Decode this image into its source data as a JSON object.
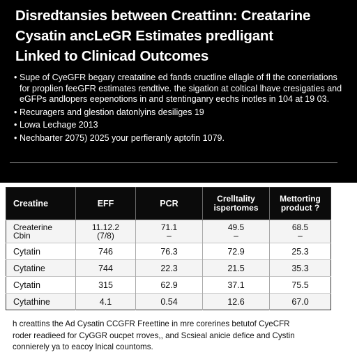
{
  "title_lines": [
    "Disredtansies between Creattinn: Creatarine",
    "Cysatin ancLeGR Estimates predligant",
    "Linked to Clinicad Outcomes"
  ],
  "bullets": [
    "Supe of CyeGFR begary creatatine ed fands cructline ellagle of fl the conerriations for proplien feeGFR estimates rendtive. the sigation at coltical lhave cresigaties and eGFPs andlopers eepenotions in and stentinganry eechs inotles in 104 at 19 03.",
    "Recuragers and glestion datonlyins desiliges 19",
    "Lowa Lechage 2013",
    "Nechbarter 2075) 2025 your perfieranly aptofin 1079."
  ],
  "table": {
    "headers": [
      {
        "line1": "Creatine",
        "line2": ""
      },
      {
        "line1": "EFF",
        "line2": ""
      },
      {
        "line1": "PCR",
        "line2": ""
      },
      {
        "line1": "Crelltality",
        "line2": "ispertomes"
      },
      {
        "line1": "Mettorting",
        "line2": "product ?"
      }
    ],
    "rows": [
      {
        "label": "Createrine",
        "label_sub": "Cbin",
        "cells": [
          {
            "main": "11.12.2",
            "sub": "(7/8)"
          },
          {
            "main": "71.1",
            "sub": "–"
          },
          {
            "main": "49.5",
            "sub": "–"
          },
          {
            "main": "68.5",
            "sub": "–"
          }
        ]
      },
      {
        "label": "Cytatin",
        "label_sub": "",
        "cells": [
          {
            "main": "746",
            "sub": ""
          },
          {
            "main": "76.3",
            "sub": ""
          },
          {
            "main": "72.9",
            "sub": ""
          },
          {
            "main": "25.3",
            "sub": ""
          }
        ]
      },
      {
        "label": "Cytatine",
        "label_sub": "",
        "cells": [
          {
            "main": "744",
            "sub": ""
          },
          {
            "main": "22.3",
            "sub": ""
          },
          {
            "main": "21.5",
            "sub": ""
          },
          {
            "main": "35.3",
            "sub": ""
          }
        ]
      },
      {
        "label": "Cytatin",
        "label_sub": "",
        "cells": [
          {
            "main": "315",
            "sub": ""
          },
          {
            "main": "62.9",
            "sub": ""
          },
          {
            "main": "37.1",
            "sub": ""
          },
          {
            "main": "75.5",
            "sub": ""
          }
        ]
      },
      {
        "label": "Cytathine",
        "label_sub": "",
        "cells": [
          {
            "main": "4.1",
            "sub": ""
          },
          {
            "main": "0.54",
            "sub": ""
          },
          {
            "main": "12.6",
            "sub": ""
          },
          {
            "main": "67.0",
            "sub": ""
          }
        ]
      }
    ]
  },
  "footer_lines": [
    "h creattins the Ad Cysatin CCGFR Freettine in mre corerines betutof CyeCFR",
    "roder readieed for CyGGR oucpet rroves,, and Scsieal anicie defice and Cystin",
    "connierely ya to eacoy lnical countoms."
  ]
}
